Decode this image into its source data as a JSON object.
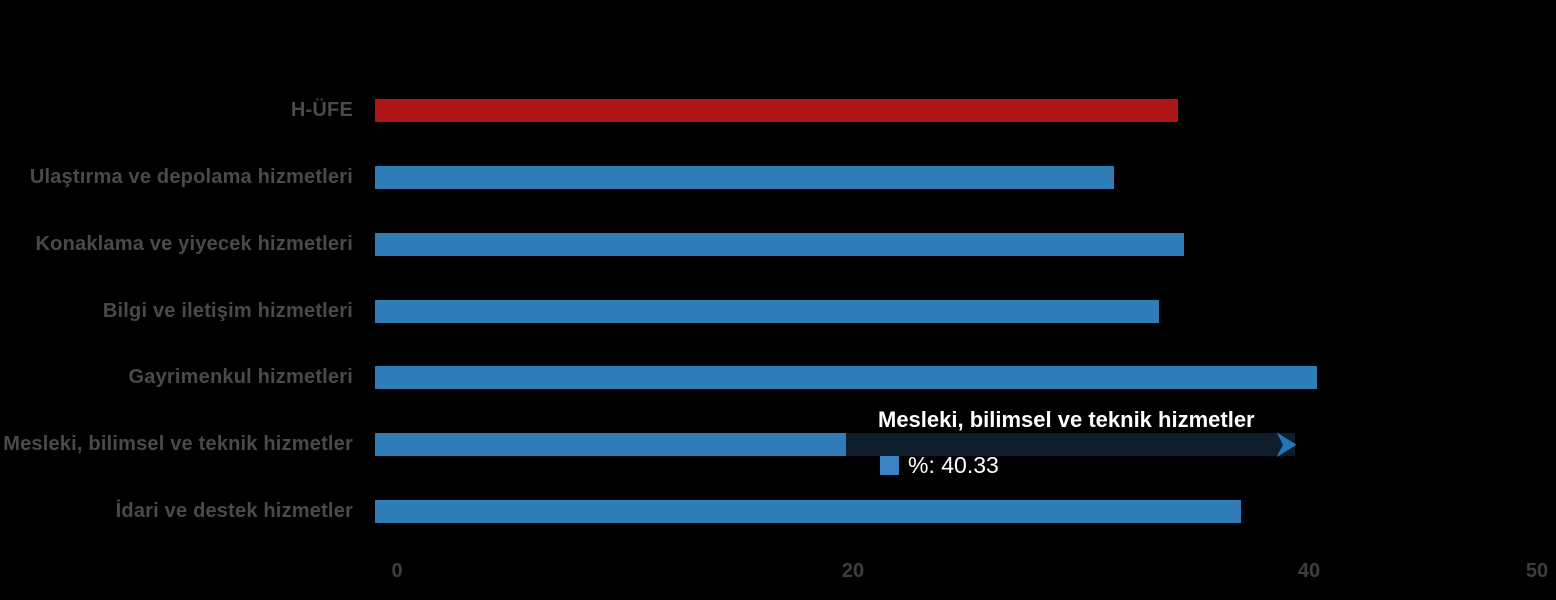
{
  "chart_data": {
    "type": "bar",
    "orientation": "horizontal",
    "title": "",
    "xlabel": "",
    "ylabel": "",
    "xlim": [
      0,
      50
    ],
    "x_ticks": [
      0,
      20,
      40,
      50
    ],
    "grid": false,
    "legend": false,
    "categories": [
      "H-ÜFE",
      "Ulaştırma ve depolama hizmetleri",
      "Konaklama ve yiyecek hizmetleri",
      "Bilgi ve iletişim hizmetleri",
      "Gayrimenkul hizmetleri",
      "Mesleki, bilimsel ve teknik hizmetler",
      "İdari ve destek hizmetler"
    ],
    "values": [
      35.2,
      32.4,
      35.5,
      34.4,
      41.3,
      40.33,
      38.0
    ],
    "bar_colors": [
      "#ae1418",
      "#2e7cb8",
      "#2e7cb8",
      "#2e7cb8",
      "#2e7cb8",
      "#2e7cb8",
      "#2e7cb8"
    ]
  },
  "highlight": {
    "row_index": 5,
    "overlay_start_value": 20.66,
    "overlay_color": "#0d1d2c",
    "arrow_color": "#2277bb"
  },
  "tooltip": {
    "title": "Mesleki, bilimsel ve teknik hizmetler",
    "value_label": "%: 40.33",
    "swatch_color": "#3b82c2",
    "text_color": "#ffffff"
  },
  "colors": {
    "background": "#000000",
    "category_label": "#4a4a4a",
    "tick_label": "#3e3e3e",
    "bar_blue": "#2e7cb8",
    "bar_red": "#ae1418"
  }
}
